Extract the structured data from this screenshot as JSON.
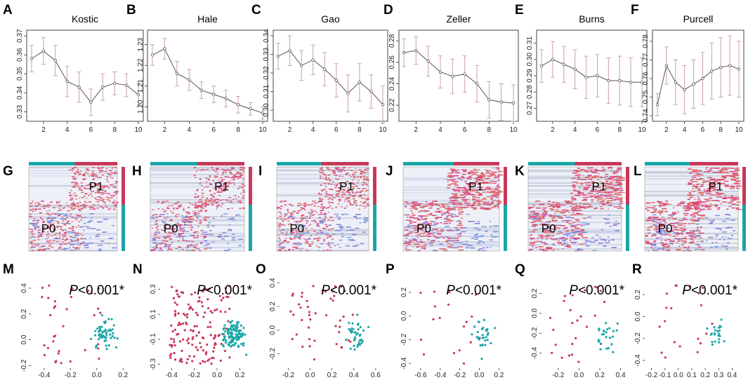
{
  "colors": {
    "teal": "#1aa6a8",
    "crimson": "#c8385a",
    "errbar": "#c9a0a8",
    "line": "#555555"
  },
  "line_panels": [
    {
      "label": "A",
      "title": "Kostic",
      "ylim": [
        0.325,
        0.373
      ],
      "yticks": [
        {
          "v": 0.33,
          "t": "0.33"
        },
        {
          "v": 0.34,
          "t": "0.34"
        },
        {
          "v": 0.35,
          "t": "0.35"
        },
        {
          "v": 0.36,
          "t": "0.36"
        },
        {
          "v": 0.37,
          "t": "0.37"
        }
      ],
      "means": [
        0.358,
        0.362,
        0.357,
        0.346,
        0.343,
        0.335,
        0.343,
        0.345,
        0.344,
        0.339
      ],
      "err": [
        0.007,
        0.007,
        0.008,
        0.008,
        0.008,
        0.007,
        0.007,
        0.006,
        0.006,
        0.006
      ]
    },
    {
      "label": "B",
      "title": "Hale",
      "ylim": [
        1.193,
        1.237
      ],
      "yticks": [
        {
          "v": 1.2,
          "t": "1.20"
        },
        {
          "v": 1.21,
          "t": "1.21"
        },
        {
          "v": 1.22,
          "t": "1.22"
        },
        {
          "v": 1.23,
          "t": "1.23"
        }
      ],
      "means": [
        1.225,
        1.228,
        1.216,
        1.213,
        1.208,
        1.206,
        1.204,
        1.201,
        1.199,
        1.197
      ],
      "err": [
        0.005,
        0.005,
        0.006,
        0.005,
        0.004,
        0.004,
        0.004,
        0.004,
        0.003,
        0.003
      ]
    },
    {
      "label": "C",
      "title": "Gao",
      "ylim": [
        0.294,
        0.343
      ],
      "yticks": [
        {
          "v": 0.3,
          "t": "0.30"
        },
        {
          "v": 0.31,
          "t": "0.31"
        },
        {
          "v": 0.32,
          "t": "0.32"
        },
        {
          "v": 0.33,
          "t": "0.33"
        },
        {
          "v": 0.34,
          "t": "0.34"
        }
      ],
      "means": [
        0.329,
        0.332,
        0.324,
        0.327,
        0.322,
        0.316,
        0.309,
        0.315,
        0.31,
        0.303
      ],
      "err": [
        0.007,
        0.008,
        0.008,
        0.008,
        0.009,
        0.009,
        0.01,
        0.01,
        0.009,
        0.01
      ]
    },
    {
      "label": "D",
      "title": "Zeller",
      "ylim": [
        0.205,
        0.29
      ],
      "yticks": [
        {
          "v": 0.22,
          "t": "0.22"
        },
        {
          "v": 0.24,
          "t": "0.24"
        },
        {
          "v": 0.26,
          "t": "0.26"
        },
        {
          "v": 0.28,
          "t": "0.28"
        }
      ],
      "means": [
        0.269,
        0.271,
        0.261,
        0.251,
        0.247,
        0.249,
        0.24,
        0.225,
        0.223,
        0.222
      ],
      "err": [
        0.013,
        0.013,
        0.014,
        0.015,
        0.016,
        0.017,
        0.017,
        0.017,
        0.017,
        0.017
      ]
    },
    {
      "label": "E",
      "title": "Burns",
      "ylim": [
        0.262,
        0.318
      ],
      "yticks": [
        {
          "v": 0.27,
          "t": "0.27"
        },
        {
          "v": 0.28,
          "t": "0.28"
        },
        {
          "v": 0.29,
          "t": "0.29"
        },
        {
          "v": 0.3,
          "t": "0.30"
        },
        {
          "v": 0.31,
          "t": "0.31"
        }
      ],
      "means": [
        0.296,
        0.3,
        0.297,
        0.294,
        0.289,
        0.29,
        0.287,
        0.287,
        0.286,
        0.286
      ],
      "err": [
        0.01,
        0.011,
        0.011,
        0.012,
        0.013,
        0.013,
        0.014,
        0.015,
        0.015,
        0.015
      ]
    },
    {
      "label": "F",
      "title": "Purcell",
      "ylim": [
        0.737,
        0.786
      ],
      "yticks": [
        {
          "v": 0.74,
          "t": "0.74"
        },
        {
          "v": 0.75,
          "t": "0.75"
        },
        {
          "v": 0.76,
          "t": "0.76"
        },
        {
          "v": 0.77,
          "t": "0.77"
        },
        {
          "v": 0.78,
          "t": "0.78"
        }
      ],
      "means": [
        0.746,
        0.767,
        0.758,
        0.754,
        0.757,
        0.76,
        0.764,
        0.766,
        0.767,
        0.765
      ],
      "err": [
        0.006,
        0.01,
        0.012,
        0.013,
        0.013,
        0.014,
        0.015,
        0.016,
        0.016,
        0.015
      ]
    }
  ],
  "x_ticks": [
    "2",
    "4",
    "6",
    "8",
    "10"
  ],
  "heat_panels": [
    {
      "label": "G",
      "p1": "P1",
      "p0": "P0"
    },
    {
      "label": "H",
      "p1": "P1",
      "p0": "P0"
    },
    {
      "label": "I",
      "p1": "P1",
      "p0": "P0"
    },
    {
      "label": "J",
      "p1": "P1",
      "p0": "P0"
    },
    {
      "label": "K",
      "p1": "P1",
      "p0": "P0"
    },
    {
      "label": "L",
      "p1": "P1",
      "p0": "P0"
    }
  ],
  "scatter_panels": [
    {
      "label": "M",
      "p_prefix": "P",
      "p_text": "<0.001*",
      "xlim": [
        -0.5,
        0.22
      ],
      "ylim": [
        -0.22,
        0.46
      ],
      "xticks": [
        {
          "v": -0.4,
          "t": "-0.4"
        },
        {
          "v": -0.2,
          "t": "-0.2"
        },
        {
          "v": 0.0,
          "t": "0.0"
        },
        {
          "v": 0.2,
          "t": "0.2"
        }
      ],
      "yticks": [
        {
          "v": -0.2,
          "t": "-0.2"
        },
        {
          "v": 0.0,
          "t": "0.0"
        },
        {
          "v": 0.2,
          "t": "0.2"
        },
        {
          "v": 0.4,
          "t": "0.4"
        }
      ]
    },
    {
      "label": "N",
      "p_prefix": "P",
      "p_text": "<0.001*",
      "xlim": [
        -0.5,
        0.32
      ],
      "ylim": [
        -0.33,
        0.37
      ],
      "xticks": [
        {
          "v": -0.4,
          "t": "-0.4"
        },
        {
          "v": -0.2,
          "t": "-0.2"
        },
        {
          "v": 0.0,
          "t": "0.0"
        },
        {
          "v": 0.2,
          "t": "0.2"
        }
      ],
      "yticks": [
        {
          "v": -0.3,
          "t": "-0.3"
        },
        {
          "v": -0.1,
          "t": "-0.1"
        },
        {
          "v": 0.1,
          "t": "0.1"
        },
        {
          "v": 0.3,
          "t": "0.3"
        }
      ]
    },
    {
      "label": "O",
      "p_prefix": "P",
      "p_text": "<0.001*",
      "xlim": [
        -0.28,
        0.62
      ],
      "ylim": [
        -0.32,
        0.42
      ],
      "xticks": [
        {
          "v": -0.2,
          "t": "-0.2"
        },
        {
          "v": 0.0,
          "t": "0.0"
        },
        {
          "v": 0.2,
          "t": "0.2"
        },
        {
          "v": 0.4,
          "t": "0.4"
        },
        {
          "v": 0.6,
          "t": "0.6"
        }
      ],
      "yticks": [
        {
          "v": -0.2,
          "t": "-0.2"
        },
        {
          "v": 0.0,
          "t": "0.0"
        },
        {
          "v": 0.2,
          "t": "0.2"
        },
        {
          "v": 0.4,
          "t": "0.4"
        }
      ]
    },
    {
      "label": "P",
      "p_prefix": "P",
      "p_text": "<0.001*",
      "xlim": [
        -0.7,
        0.24
      ],
      "ylim": [
        -0.44,
        0.3
      ],
      "xticks": [
        {
          "v": -0.6,
          "t": "-0.6"
        },
        {
          "v": -0.4,
          "t": "-0.4"
        },
        {
          "v": -0.2,
          "t": "-0.2"
        },
        {
          "v": 0.0,
          "t": "0.0"
        },
        {
          "v": 0.2,
          "t": "0.2"
        }
      ],
      "yticks": [
        {
          "v": -0.4,
          "t": "-0.4"
        },
        {
          "v": -0.2,
          "t": "-0.2"
        },
        {
          "v": 0.0,
          "t": "0.0"
        },
        {
          "v": 0.2,
          "t": "0.2"
        }
      ]
    },
    {
      "label": "Q",
      "p_prefix": "P",
      "p_text": "<0.001*",
      "xlim": [
        -0.36,
        0.45
      ],
      "ylim": [
        -0.55,
        0.33
      ],
      "xticks": [
        {
          "v": -0.2,
          "t": "-0.2"
        },
        {
          "v": 0.0,
          "t": "0.0"
        },
        {
          "v": 0.2,
          "t": "0.2"
        },
        {
          "v": 0.4,
          "t": "0.4"
        }
      ],
      "yticks": [
        {
          "v": -0.4,
          "t": "-0.4"
        },
        {
          "v": -0.2,
          "t": "-0.2"
        },
        {
          "v": 0.0,
          "t": "0.0"
        },
        {
          "v": 0.2,
          "t": "0.2"
        }
      ]
    },
    {
      "label": "R",
      "p_prefix": "P",
      "p_text": "<0.001*",
      "xlim": [
        -0.25,
        0.45
      ],
      "ylim": [
        -0.47,
        0.33
      ],
      "xticks": [
        {
          "v": -0.2,
          "t": "-0.2"
        },
        {
          "v": -0.1,
          "t": "-0.1"
        },
        {
          "v": 0.0,
          "t": "0.0"
        },
        {
          "v": 0.1,
          "t": "0.1"
        },
        {
          "v": 0.2,
          "t": "0.2"
        },
        {
          "v": 0.3,
          "t": "0.3"
        },
        {
          "v": 0.4,
          "t": "0.4"
        }
      ],
      "yticks": [
        {
          "v": -0.4,
          "t": "-0.4"
        },
        {
          "v": -0.2,
          "t": "-0.2"
        },
        {
          "v": 0.0,
          "t": "0.0"
        },
        {
          "v": 0.2,
          "t": "0.2"
        }
      ]
    }
  ],
  "chart_data": [
    {
      "type": "line",
      "title": "Kostic",
      "x": [
        1,
        2,
        3,
        4,
        5,
        6,
        7,
        8,
        9,
        10
      ],
      "series": [
        {
          "name": "mean",
          "values": [
            0.358,
            0.362,
            0.357,
            0.346,
            0.343,
            0.335,
            0.343,
            0.345,
            0.344,
            0.339
          ]
        }
      ],
      "ylim": [
        0.325,
        0.373
      ]
    },
    {
      "type": "line",
      "title": "Hale",
      "x": [
        1,
        2,
        3,
        4,
        5,
        6,
        7,
        8,
        9,
        10
      ],
      "series": [
        {
          "name": "mean",
          "values": [
            1.225,
            1.228,
            1.216,
            1.213,
            1.208,
            1.206,
            1.204,
            1.201,
            1.199,
            1.197
          ]
        }
      ],
      "ylim": [
        1.193,
        1.237
      ]
    },
    {
      "type": "line",
      "title": "Gao",
      "x": [
        1,
        2,
        3,
        4,
        5,
        6,
        7,
        8,
        9,
        10
      ],
      "series": [
        {
          "name": "mean",
          "values": [
            0.329,
            0.332,
            0.324,
            0.327,
            0.322,
            0.316,
            0.309,
            0.315,
            0.31,
            0.303
          ]
        }
      ],
      "ylim": [
        0.294,
        0.343
      ]
    },
    {
      "type": "line",
      "title": "Zeller",
      "x": [
        1,
        2,
        3,
        4,
        5,
        6,
        7,
        8,
        9,
        10
      ],
      "series": [
        {
          "name": "mean",
          "values": [
            0.269,
            0.271,
            0.261,
            0.251,
            0.247,
            0.249,
            0.24,
            0.225,
            0.223,
            0.222
          ]
        }
      ],
      "ylim": [
        0.205,
        0.29
      ]
    },
    {
      "type": "line",
      "title": "Burns",
      "x": [
        1,
        2,
        3,
        4,
        5,
        6,
        7,
        8,
        9,
        10
      ],
      "series": [
        {
          "name": "mean",
          "values": [
            0.296,
            0.3,
            0.297,
            0.294,
            0.289,
            0.29,
            0.287,
            0.287,
            0.286,
            0.286
          ]
        }
      ],
      "ylim": [
        0.262,
        0.318
      ]
    },
    {
      "type": "line",
      "title": "Purcell",
      "x": [
        1,
        2,
        3,
        4,
        5,
        6,
        7,
        8,
        9,
        10
      ],
      "series": [
        {
          "name": "mean",
          "values": [
            0.746,
            0.767,
            0.758,
            0.754,
            0.757,
            0.76,
            0.764,
            0.766,
            0.767,
            0.765
          ]
        }
      ],
      "ylim": [
        0.737,
        0.786
      ]
    },
    {
      "type": "heatmap",
      "panels": [
        "G",
        "H",
        "I",
        "J",
        "K",
        "L"
      ],
      "groups": [
        "P1",
        "P0"
      ]
    },
    {
      "type": "scatter",
      "panels": [
        "M",
        "N",
        "O",
        "P",
        "Q",
        "R"
      ],
      "groups": [
        "P1",
        "P0"
      ],
      "annotation": "P<0.001*"
    }
  ]
}
